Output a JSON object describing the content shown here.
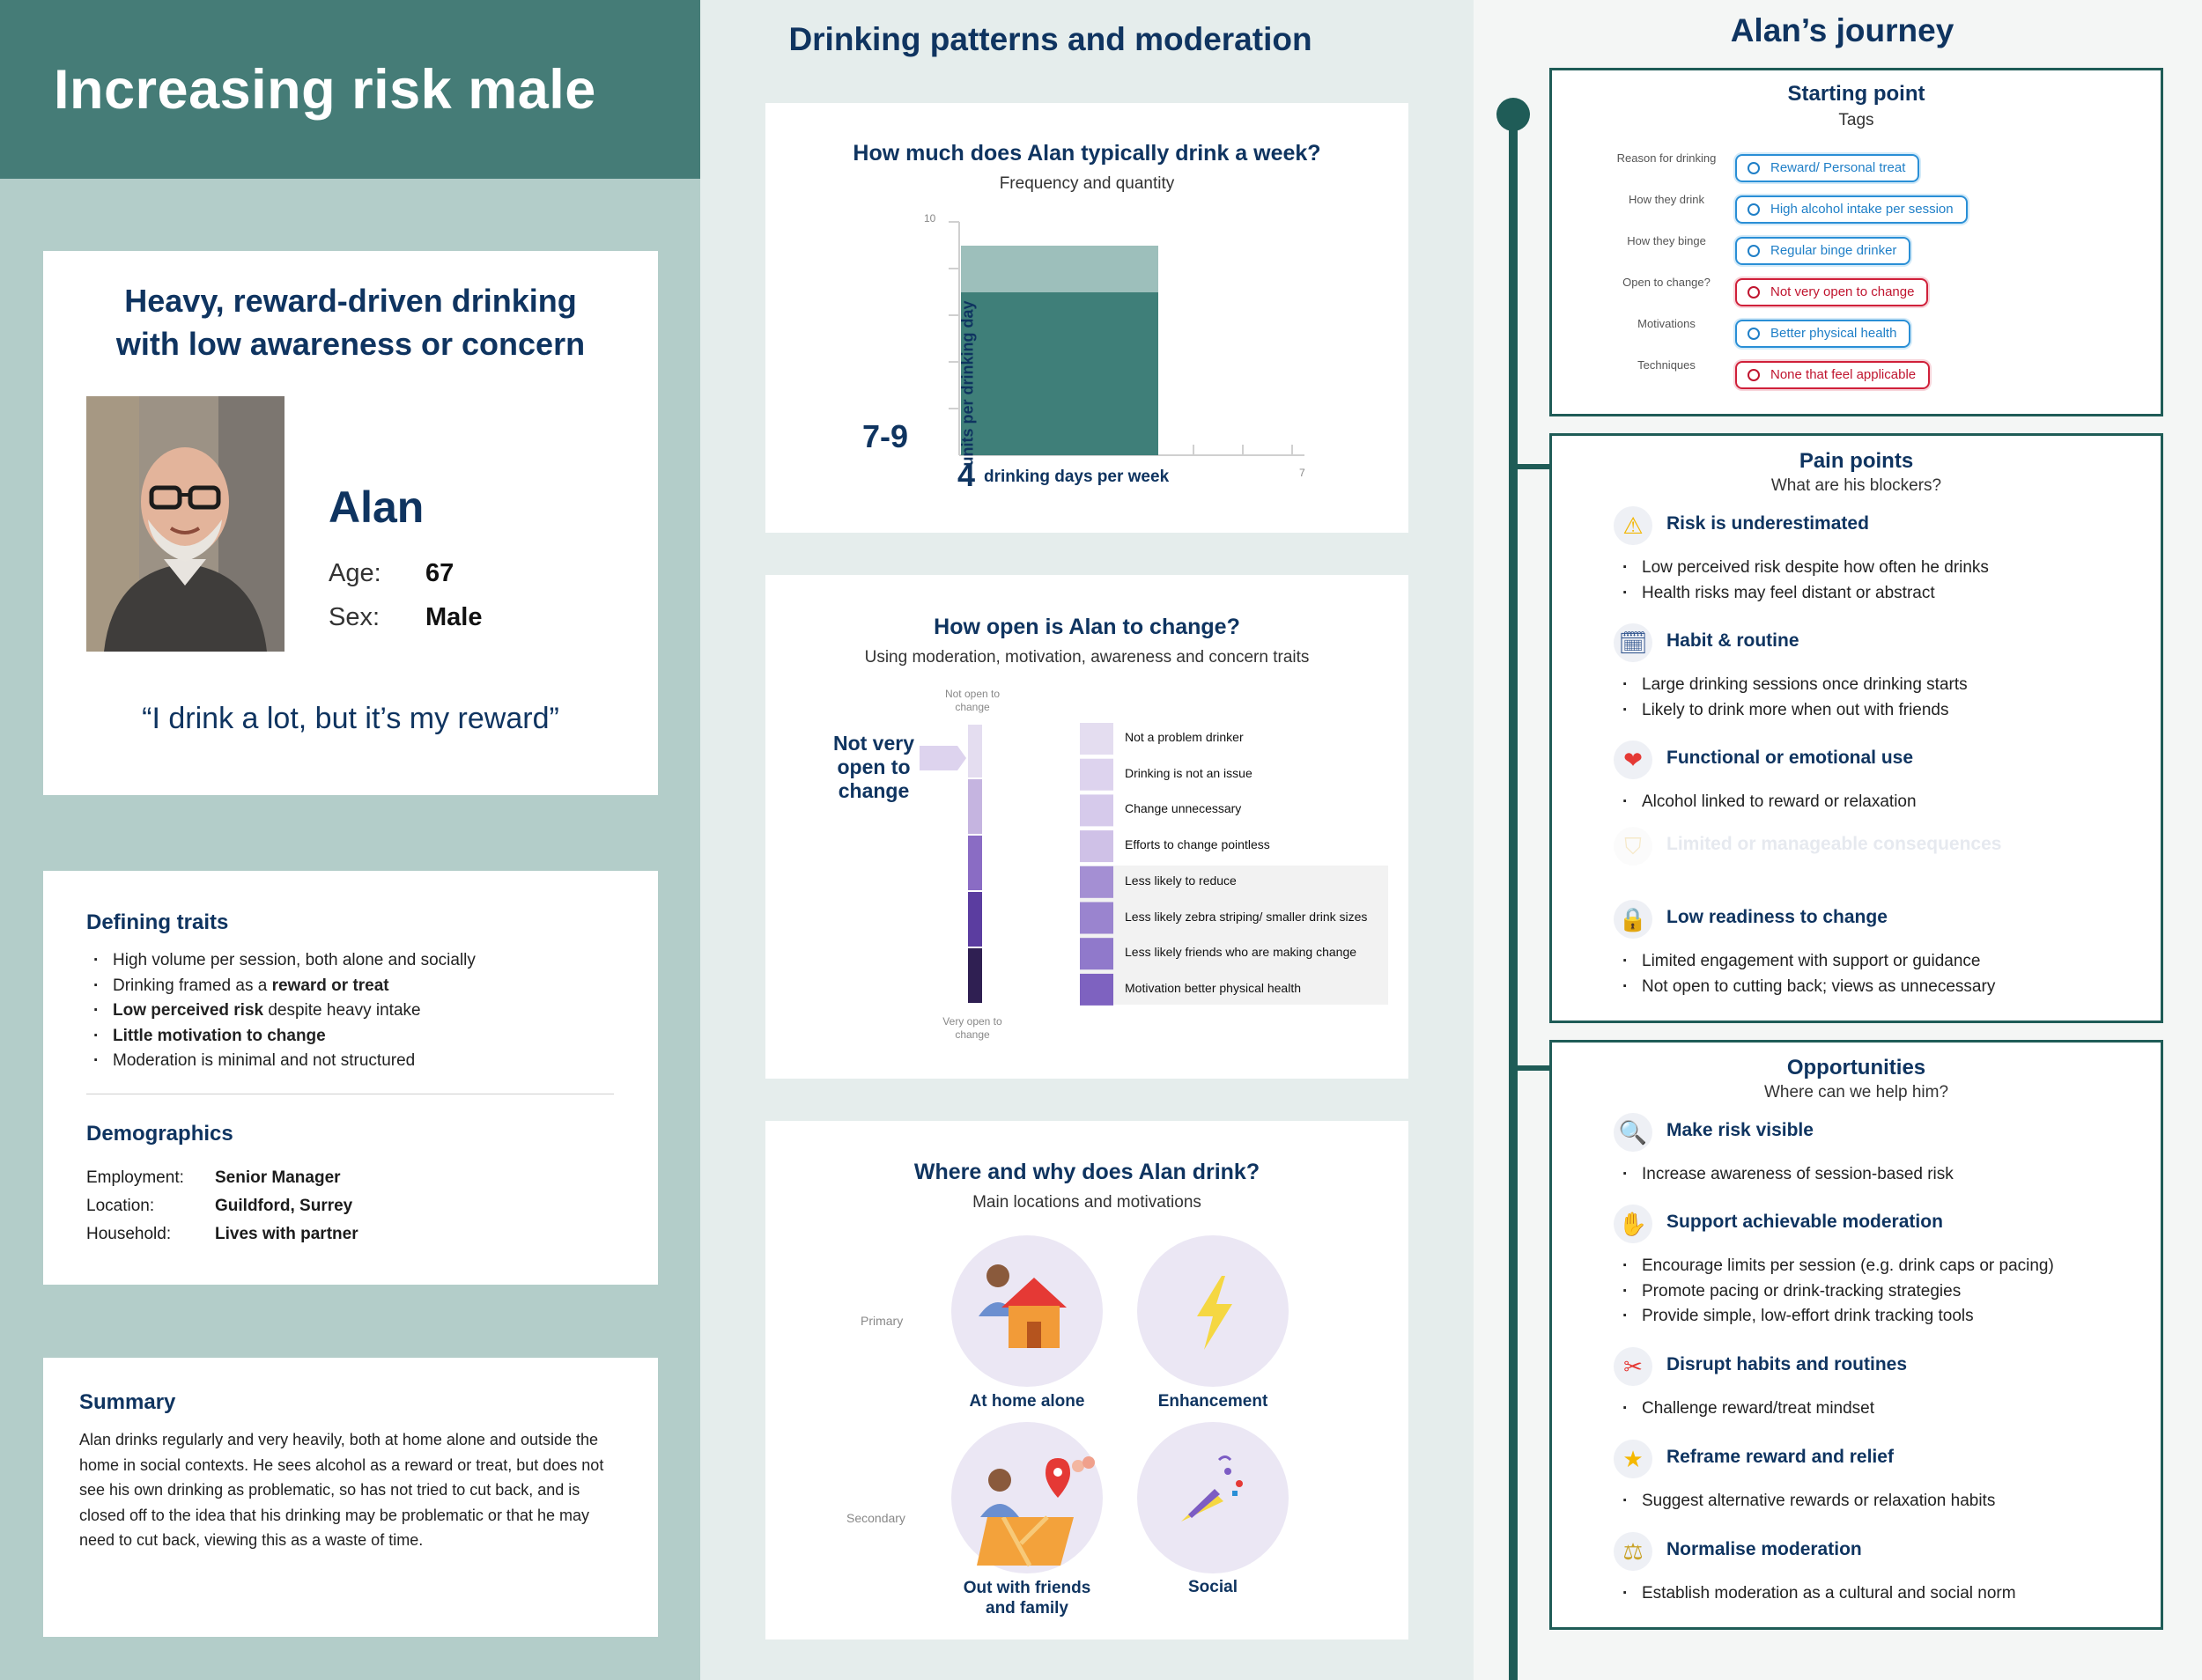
{
  "left": {
    "header_title": "Increasing risk male",
    "headline_line1": "Heavy, reward-driven drinking",
    "headline_line2": "with low awareness or concern",
    "name": "Alan",
    "age_label": "Age:",
    "age_value": "67",
    "sex_label": "Sex:",
    "sex_value": "Male",
    "quote": "“I drink a lot, but it’s my reward”",
    "traits_title": "Defining traits",
    "trait1": "High volume per session, both alone and socially",
    "trait2_pre": "Drinking framed as a ",
    "trait2_bold": "reward or treat",
    "trait3_bold": "Low perceived risk",
    "trait3_post": " despite heavy intake",
    "trait4_bold": "Little motivation to change",
    "trait5": "Moderation is minimal and not structured",
    "demographics_title": "Demographics",
    "employment_label": "Employment:",
    "employment_value": "Senior Manager",
    "location_label": "Location:",
    "location_value": "Guildford, Surrey",
    "household_label": "Household:",
    "household_value": "Lives with partner",
    "summary_title": "Summary",
    "summary_text": "Alan drinks regularly and very heavily, both at home alone and outside the home in social contexts. He sees alcohol as a reward or treat, but does not see his own drinking as problematic, so has not tried to cut back, and is closed off to the idea that his drinking may be problematic or that he may need to cut back, viewing this as a waste of time."
  },
  "middle": {
    "title": "Drinking patterns and moderation",
    "freq_title": "How much does Alan typically drink a week?",
    "freq_subtitle": "Frequency and quantity",
    "y_tick_top": "10",
    "y_axis_label": "units per drinking day",
    "units_value": "7-9",
    "days_value": "4",
    "days_label": "drinking days per week",
    "x_tick_end": "7",
    "open_title": "How open is Alan to change?",
    "open_subtitle": "Using moderation, motivation, awareness and concern traits",
    "scale_top": "Not open to change",
    "scale_bottom": "Very open to change",
    "status": "Not very open to change",
    "traits": [
      "Not a problem drinker",
      "Drinking is not an issue",
      "Change unnecessary",
      "Efforts to change pointless",
      "Less likely to reduce",
      "Less likely zebra striping/ smaller drink sizes",
      "Less likely friends who are making change",
      "Motivation better physical health"
    ],
    "where_title": "Where and why does Alan drink?",
    "where_subtitle": "Main locations and motivations",
    "primary_label": "Primary",
    "secondary_label": "Secondary",
    "loc1": "At home alone",
    "loc2": "Enhancement",
    "loc3_line1": "Out with friends",
    "loc3_line2": "and family",
    "loc4": "Social"
  },
  "right": {
    "title": "Alan’s journey",
    "start_title": "Starting point",
    "start_sub": "Tags",
    "tags": [
      {
        "label": "Reason for drinking",
        "value": "Reward/ Personal treat",
        "color": "#2a8fd6"
      },
      {
        "label": "How they drink",
        "value": "High alcohol intake per session",
        "color": "#2a8fd6"
      },
      {
        "label": "How they binge",
        "value": "Regular binge drinker",
        "color": "#2a8fd6"
      },
      {
        "label": "Open to change?",
        "value": "Not very open to change",
        "color": "#d0203a"
      },
      {
        "label": "Motivations",
        "value": "Better physical health",
        "color": "#2a8fd6"
      },
      {
        "label": "Techniques",
        "value": "None that feel applicable",
        "color": "#d0203a"
      }
    ],
    "pain_title": "Pain points",
    "pain_sub": "What are his blockers?",
    "p1_title": "Risk is underestimated",
    "p1_b1": "Low perceived risk despite how often he drinks",
    "p1_b2": "Health risks may feel distant or abstract",
    "p2_title": "Habit & routine",
    "p2_b1": "Large drinking sessions once drinking starts",
    "p2_b2": "Likely to drink more when out with friends",
    "p3_title": "Functional or emotional use",
    "p3_b1": "Alcohol linked to reward or relaxation",
    "p4_title": "Limited or manageable consequences",
    "p5_title": "Low readiness to change",
    "p5_b1": "Limited engagement with support or guidance",
    "p5_b2": "Not open to cutting back; views as unnecessary",
    "opp_title": "Opportunities",
    "opp_sub": "Where can we help him?",
    "o1_title": "Make risk visible",
    "o1_b1": "Increase awareness of session-based risk",
    "o2_title": "Support achievable moderation",
    "o2_b1": "Encourage limits per session (e.g. drink caps or pacing)",
    "o2_b2": "Promote pacing or drink-tracking strategies",
    "o2_b3": "Provide simple, low-effort drink tracking tools",
    "o3_title": "Disrupt habits and routines",
    "o3_b1": "Challenge reward/treat mindset",
    "o4_title": "Reframe reward and relief",
    "o4_b1": "Suggest alternative rewards or relaxation habits",
    "o5_title": "Normalise moderation",
    "o5_b1": "Establish moderation as a cultural and social norm"
  },
  "colors": {
    "teal_dark": "#457c77",
    "teal_light": "#b3cdc9",
    "navy": "#0f3460",
    "bar_main": "#3f7f79",
    "bar_top": "#9dbfbb",
    "scale": [
      "#e4ddf0",
      "#c5b4e0",
      "#8a6cc4",
      "#5b3da0",
      "#2f1f52"
    ],
    "tag_blue": "#2a8fd6",
    "tag_red": "#d0203a"
  }
}
